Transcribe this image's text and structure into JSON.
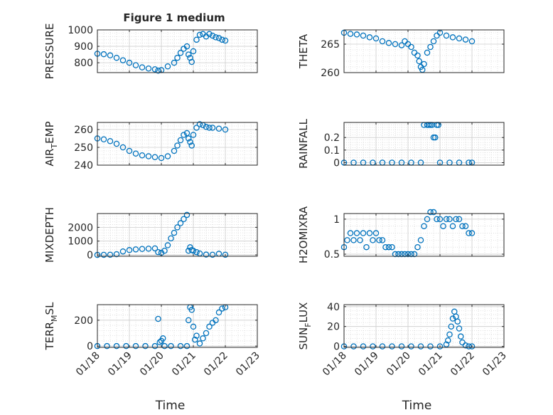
{
  "figure_title": "Figure 1 medium",
  "colors": {
    "marker": "#0072BD",
    "axis": "#262626",
    "grid": "#cccccc",
    "background": "#ffffff"
  },
  "chart_data": [
    {
      "type": "scatter",
      "ylabel": "PRESSURE",
      "xlabel": "",
      "xlim": [
        "01/18",
        "01/23"
      ],
      "ylim": [
        740,
        1000
      ],
      "yticks": [
        800,
        900,
        1000
      ],
      "xtick_labels_shown": false,
      "grid": true,
      "x": [
        18.0,
        18.2,
        18.4,
        18.6,
        18.8,
        19.0,
        19.2,
        19.4,
        19.6,
        19.8,
        19.9,
        20.0,
        20.2,
        20.4,
        20.5,
        20.6,
        20.7,
        20.8,
        20.85,
        20.9,
        20.95,
        21.0,
        21.1,
        21.2,
        21.3,
        21.4,
        21.5,
        21.6,
        21.7,
        21.8,
        21.9,
        22.0
      ],
      "y": [
        855,
        852,
        845,
        830,
        815,
        800,
        785,
        772,
        765,
        760,
        752,
        755,
        778,
        800,
        830,
        860,
        885,
        900,
        850,
        830,
        805,
        870,
        940,
        970,
        975,
        960,
        975,
        965,
        955,
        950,
        940,
        935
      ]
    },
    {
      "type": "scatter",
      "ylabel": "THETA",
      "xlabel": "",
      "xlim": [
        "01/18",
        "01/23"
      ],
      "ylim": [
        260,
        267.5
      ],
      "yticks": [
        260,
        265
      ],
      "xtick_labels_shown": false,
      "grid": true,
      "x": [
        18.0,
        18.2,
        18.4,
        18.6,
        18.8,
        19.0,
        19.2,
        19.4,
        19.6,
        19.8,
        19.9,
        20.0,
        20.1,
        20.2,
        20.3,
        20.35,
        20.4,
        20.45,
        20.5,
        20.6,
        20.7,
        20.8,
        20.9,
        21.0,
        21.2,
        21.4,
        21.6,
        21.8,
        22.0
      ],
      "y": [
        267,
        266.8,
        266.7,
        266.5,
        266.2,
        266,
        265.5,
        265.2,
        265,
        264.8,
        265.5,
        265,
        264.5,
        263.5,
        263,
        262,
        261,
        260.5,
        261.5,
        263.5,
        264.5,
        265.5,
        266.5,
        267,
        266.5,
        266.2,
        266,
        265.8,
        265.5
      ]
    },
    {
      "type": "scatter",
      "ylabel": "AIR_TEMP",
      "xlabel": "",
      "xlim": [
        "01/18",
        "01/23"
      ],
      "ylim": [
        240,
        264
      ],
      "yticks": [
        240,
        250,
        260
      ],
      "xtick_labels_shown": false,
      "grid": true,
      "x": [
        18.0,
        18.2,
        18.4,
        18.6,
        18.8,
        19.0,
        19.2,
        19.4,
        19.6,
        19.8,
        20.0,
        20.2,
        20.4,
        20.5,
        20.6,
        20.7,
        20.8,
        20.85,
        20.9,
        20.95,
        21.0,
        21.1,
        21.2,
        21.3,
        21.4,
        21.5,
        21.6,
        21.8,
        22.0
      ],
      "y": [
        255,
        254.5,
        253.5,
        252,
        250,
        248,
        246.5,
        245.5,
        245,
        244.5,
        244,
        245,
        248,
        251,
        254,
        257,
        258,
        255,
        253,
        251,
        257,
        261,
        263,
        262.5,
        261.5,
        261,
        261,
        260.5,
        260
      ]
    },
    {
      "type": "scatter",
      "ylabel": "RAINFALL",
      "xlabel": "",
      "xlim": [
        "01/18",
        "01/23"
      ],
      "ylim": [
        -0.02,
        0.32
      ],
      "yticks": [
        0,
        0.1,
        0.2
      ],
      "xtick_labels_shown": false,
      "grid": true,
      "x": [
        18.0,
        18.3,
        18.6,
        18.9,
        19.2,
        19.5,
        19.8,
        20.1,
        20.4,
        20.5,
        20.6,
        20.65,
        20.7,
        20.75,
        20.8,
        20.85,
        20.9,
        20.95,
        21.0,
        21.3,
        21.6,
        21.9,
        22.0
      ],
      "y": [
        0,
        0,
        0,
        0,
        0,
        0,
        0,
        0,
        0,
        0.3,
        0.3,
        0.3,
        0.3,
        0.3,
        0.2,
        0.2,
        0.3,
        0.3,
        0,
        0,
        0,
        0,
        0
      ]
    },
    {
      "type": "scatter",
      "ylabel": "MIXDEPTH",
      "xlabel": "",
      "xlim": [
        "01/18",
        "01/23"
      ],
      "ylim": [
        -100,
        3000
      ],
      "yticks": [
        0,
        1000,
        2000
      ],
      "xtick_labels_shown": false,
      "grid": true,
      "x": [
        18.0,
        18.2,
        18.4,
        18.6,
        18.8,
        19.0,
        19.2,
        19.4,
        19.6,
        19.8,
        19.9,
        20.0,
        20.1,
        20.2,
        20.3,
        20.4,
        20.5,
        20.6,
        20.7,
        20.8,
        20.85,
        20.9,
        20.95,
        21.0,
        21.1,
        21.2,
        21.4,
        21.6,
        21.8,
        22.0
      ],
      "y": [
        0,
        5,
        10,
        50,
        250,
        350,
        400,
        430,
        450,
        470,
        200,
        150,
        300,
        700,
        1200,
        1600,
        2000,
        2300,
        2600,
        2900,
        300,
        550,
        350,
        300,
        200,
        100,
        20,
        10,
        80,
        10
      ]
    },
    {
      "type": "scatter",
      "ylabel": "H2OMIXRA",
      "xlabel": "",
      "xlim": [
        "01/18",
        "01/23"
      ],
      "ylim": [
        0.47,
        1.08
      ],
      "yticks": [
        0.5,
        1
      ],
      "xtick_labels_shown": false,
      "grid": true,
      "x": [
        18.0,
        18.1,
        18.2,
        18.3,
        18.4,
        18.5,
        18.6,
        18.7,
        18.8,
        18.9,
        19.0,
        19.1,
        19.2,
        19.3,
        19.4,
        19.5,
        19.6,
        19.7,
        19.8,
        19.9,
        20.0,
        20.1,
        20.2,
        20.3,
        20.4,
        20.5,
        20.6,
        20.7,
        20.8,
        20.9,
        21.0,
        21.1,
        21.2,
        21.3,
        21.4,
        21.5,
        21.6,
        21.7,
        21.8,
        21.9,
        22.0
      ],
      "y": [
        0.6,
        0.7,
        0.8,
        0.7,
        0.8,
        0.7,
        0.8,
        0.6,
        0.8,
        0.7,
        0.8,
        0.7,
        0.7,
        0.6,
        0.6,
        0.6,
        0.5,
        0.5,
        0.5,
        0.5,
        0.5,
        0.5,
        0.5,
        0.6,
        0.7,
        0.9,
        1.0,
        1.1,
        1.1,
        1.0,
        1.0,
        0.9,
        1.0,
        1.0,
        0.9,
        1.0,
        1.0,
        0.9,
        0.9,
        0.8,
        0.8
      ]
    },
    {
      "type": "scatter",
      "ylabel": "TERR_MSL",
      "xlabel": "Time",
      "xlim": [
        "01/18",
        "01/23"
      ],
      "ylim": [
        -10,
        320
      ],
      "yticks": [
        0,
        200
      ],
      "xtick_labels": [
        "01/18",
        "01/19",
        "01/20",
        "01/21",
        "01/22",
        "01/23"
      ],
      "grid": true,
      "x": [
        18.0,
        18.3,
        18.6,
        18.9,
        19.2,
        19.5,
        19.8,
        19.9,
        19.95,
        20.0,
        20.05,
        20.1,
        20.3,
        20.6,
        20.8,
        20.85,
        20.9,
        20.95,
        21.0,
        21.05,
        21.1,
        21.2,
        21.3,
        21.4,
        21.5,
        21.6,
        21.7,
        21.8,
        21.9,
        22.0
      ],
      "y": [
        0,
        0,
        0,
        0,
        0,
        0,
        0,
        210,
        30,
        40,
        60,
        0,
        0,
        0,
        0,
        200,
        300,
        280,
        150,
        50,
        80,
        20,
        60,
        100,
        150,
        180,
        200,
        260,
        290,
        300
      ]
    },
    {
      "type": "scatter",
      "ylabel": "SUN_FLUX",
      "xlabel": "Time",
      "xlim": [
        "01/18",
        "01/23"
      ],
      "ylim": [
        -1,
        42
      ],
      "yticks": [
        0,
        20,
        40
      ],
      "xtick_labels": [
        "01/18",
        "01/19",
        "01/20",
        "01/21",
        "01/22",
        "01/23"
      ],
      "grid": true,
      "x": [
        18.0,
        18.3,
        18.6,
        18.9,
        19.2,
        19.5,
        19.8,
        20.1,
        20.4,
        20.7,
        21.0,
        21.2,
        21.25,
        21.3,
        21.35,
        21.4,
        21.45,
        21.5,
        21.55,
        21.6,
        21.65,
        21.7,
        21.8,
        21.9,
        22.0
      ],
      "y": [
        0,
        0,
        0,
        0,
        0,
        0,
        0,
        0,
        0,
        0,
        0,
        2,
        6,
        12,
        20,
        28,
        35,
        30,
        25,
        18,
        10,
        4,
        1,
        0,
        0
      ]
    }
  ]
}
